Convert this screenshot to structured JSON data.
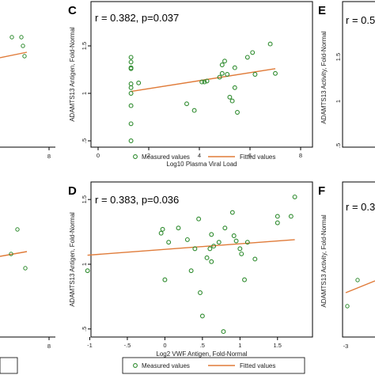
{
  "colors": {
    "point": "#2e8b2e",
    "fit": "#e07b39",
    "axis": "#000000"
  },
  "left_partial": {
    "top": {
      "xticks": [
        "8"
      ]
    },
    "bottom": {
      "xticks": [
        "8"
      ]
    }
  },
  "right_partial": {
    "E": {
      "panel_label": "E",
      "stat_text": "r = 0.5",
      "ylabel": "ADAMTS13 Activity, Fold-Normal",
      "yticks": [
        "1.5",
        "1",
        ".5"
      ]
    },
    "F": {
      "panel_label": "F",
      "stat_text": "r = 0.3",
      "ylabel": "ADAMTS13 Activity, Fold-Normal",
      "xticks": [
        "-3"
      ]
    }
  },
  "legend": {
    "measured": "Measured values",
    "fitted": "Fitted values"
  },
  "chart_data": [
    {
      "panel_label": "C",
      "type": "scatter",
      "title": "r = 0.382, p=0.037",
      "xlabel": "Log10 Plasma Viral Load",
      "ylabel": "ADAMTS13 Antigen, Fold-Normal",
      "xlim": [
        0,
        8
      ],
      "ylim": [
        0.45,
        1.55
      ],
      "xticks": [
        0,
        2,
        4,
        6,
        8
      ],
      "xtick_labels": [
        "0",
        "2",
        "4",
        "6",
        "8"
      ],
      "yticks": [
        0.5,
        1,
        1.5
      ],
      "ytick_labels": [
        ".5",
        "1",
        "1.5"
      ],
      "points": [
        [
          1.3,
          1.38
        ],
        [
          1.3,
          1.33
        ],
        [
          1.3,
          1.27
        ],
        [
          1.3,
          1.26
        ],
        [
          1.3,
          1.1
        ],
        [
          1.3,
          1.06
        ],
        [
          1.3,
          1.0
        ],
        [
          1.3,
          0.87
        ],
        [
          1.3,
          0.68
        ],
        [
          1.3,
          0.5
        ],
        [
          1.6,
          1.11
        ],
        [
          3.5,
          0.89
        ],
        [
          3.8,
          0.82
        ],
        [
          4.1,
          1.12
        ],
        [
          4.2,
          1.12
        ],
        [
          4.3,
          1.13
        ],
        [
          4.8,
          1.17
        ],
        [
          4.9,
          1.3
        ],
        [
          4.9,
          1.21
        ],
        [
          5.0,
          1.34
        ],
        [
          5.1,
          1.2
        ],
        [
          5.2,
          0.96
        ],
        [
          5.3,
          0.92
        ],
        [
          5.4,
          1.27
        ],
        [
          5.4,
          1.06
        ],
        [
          5.5,
          0.8
        ],
        [
          5.9,
          1.38
        ],
        [
          6.1,
          1.43
        ],
        [
          6.2,
          1.2
        ],
        [
          6.8,
          1.52
        ],
        [
          7.0,
          1.21
        ]
      ],
      "fit": {
        "x": [
          1.3,
          7.0
        ],
        "y": [
          1.02,
          1.26
        ]
      },
      "legend": [
        "Measured values",
        "Fitted values"
      ]
    },
    {
      "panel_label": "D",
      "type": "scatter",
      "title": "r = 0.383, p=0.036",
      "xlabel": "Log2 VWF Antigen, Fold-Normal",
      "ylabel": "ADAMTS13 Antigen, Fold-Normal",
      "xlim": [
        -1.1,
        1.85
      ],
      "ylim": [
        0.45,
        1.55
      ],
      "xticks": [
        -1,
        -0.5,
        0,
        0.5,
        1,
        1.5
      ],
      "xtick_labels": [
        "-1",
        "-.5",
        "0",
        ".5",
        "1",
        "1.5"
      ],
      "yticks": [
        0.5,
        1,
        1.5
      ],
      "ytick_labels": [
        ".5",
        "1",
        "1.5"
      ],
      "points": [
        [
          -1.03,
          0.95
        ],
        [
          -0.05,
          1.24
        ],
        [
          -0.03,
          1.27
        ],
        [
          0.0,
          0.88
        ],
        [
          0.05,
          1.17
        ],
        [
          0.18,
          1.28
        ],
        [
          0.3,
          1.19
        ],
        [
          0.35,
          0.95
        ],
        [
          0.4,
          1.12
        ],
        [
          0.45,
          1.35
        ],
        [
          0.47,
          0.78
        ],
        [
          0.5,
          0.6
        ],
        [
          0.56,
          1.05
        ],
        [
          0.6,
          1.12
        ],
        [
          0.62,
          1.23
        ],
        [
          0.62,
          1.02
        ],
        [
          0.65,
          1.14
        ],
        [
          0.72,
          1.17
        ],
        [
          0.78,
          0.48
        ],
        [
          0.8,
          1.28
        ],
        [
          0.9,
          1.4
        ],
        [
          0.92,
          1.22
        ],
        [
          0.95,
          1.18
        ],
        [
          1.0,
          1.12
        ],
        [
          1.02,
          1.08
        ],
        [
          1.06,
          0.88
        ],
        [
          1.1,
          1.17
        ],
        [
          1.2,
          1.04
        ],
        [
          1.5,
          1.37
        ],
        [
          1.5,
          1.32
        ],
        [
          1.68,
          1.37
        ],
        [
          1.73,
          1.52
        ]
      ],
      "fit": {
        "x": [
          -1.03,
          1.73
        ],
        "y": [
          1.07,
          1.19
        ]
      },
      "legend": [
        "Measured values",
        "Fitted values"
      ]
    }
  ]
}
